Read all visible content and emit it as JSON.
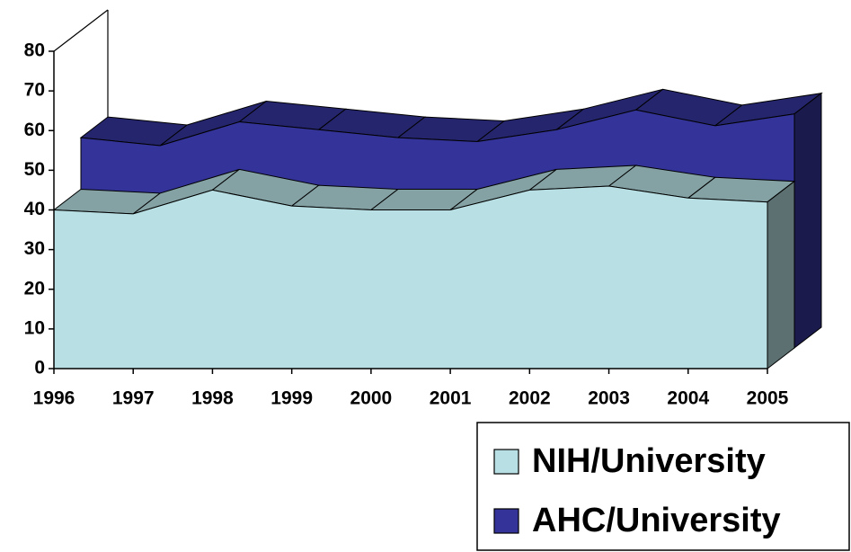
{
  "chart_data": {
    "type": "area3d",
    "categories": [
      "1996",
      "1997",
      "1998",
      "1999",
      "2000",
      "2001",
      "2002",
      "2003",
      "2004",
      "2005"
    ],
    "series": [
      {
        "name": "NIH/University",
        "color": "#b8e0e4",
        "values": [
          40,
          39,
          45,
          41,
          40,
          40,
          45,
          46,
          43,
          42
        ]
      },
      {
        "name": "AHC/University",
        "color": "#333399",
        "values": [
          53,
          51,
          57,
          55,
          53,
          52,
          55,
          60,
          56,
          59
        ]
      }
    ],
    "ylim": [
      0,
      80
    ],
    "yticks": [
      0,
      10,
      20,
      30,
      40,
      50,
      60,
      70,
      80
    ],
    "legend": "bottom-right"
  }
}
